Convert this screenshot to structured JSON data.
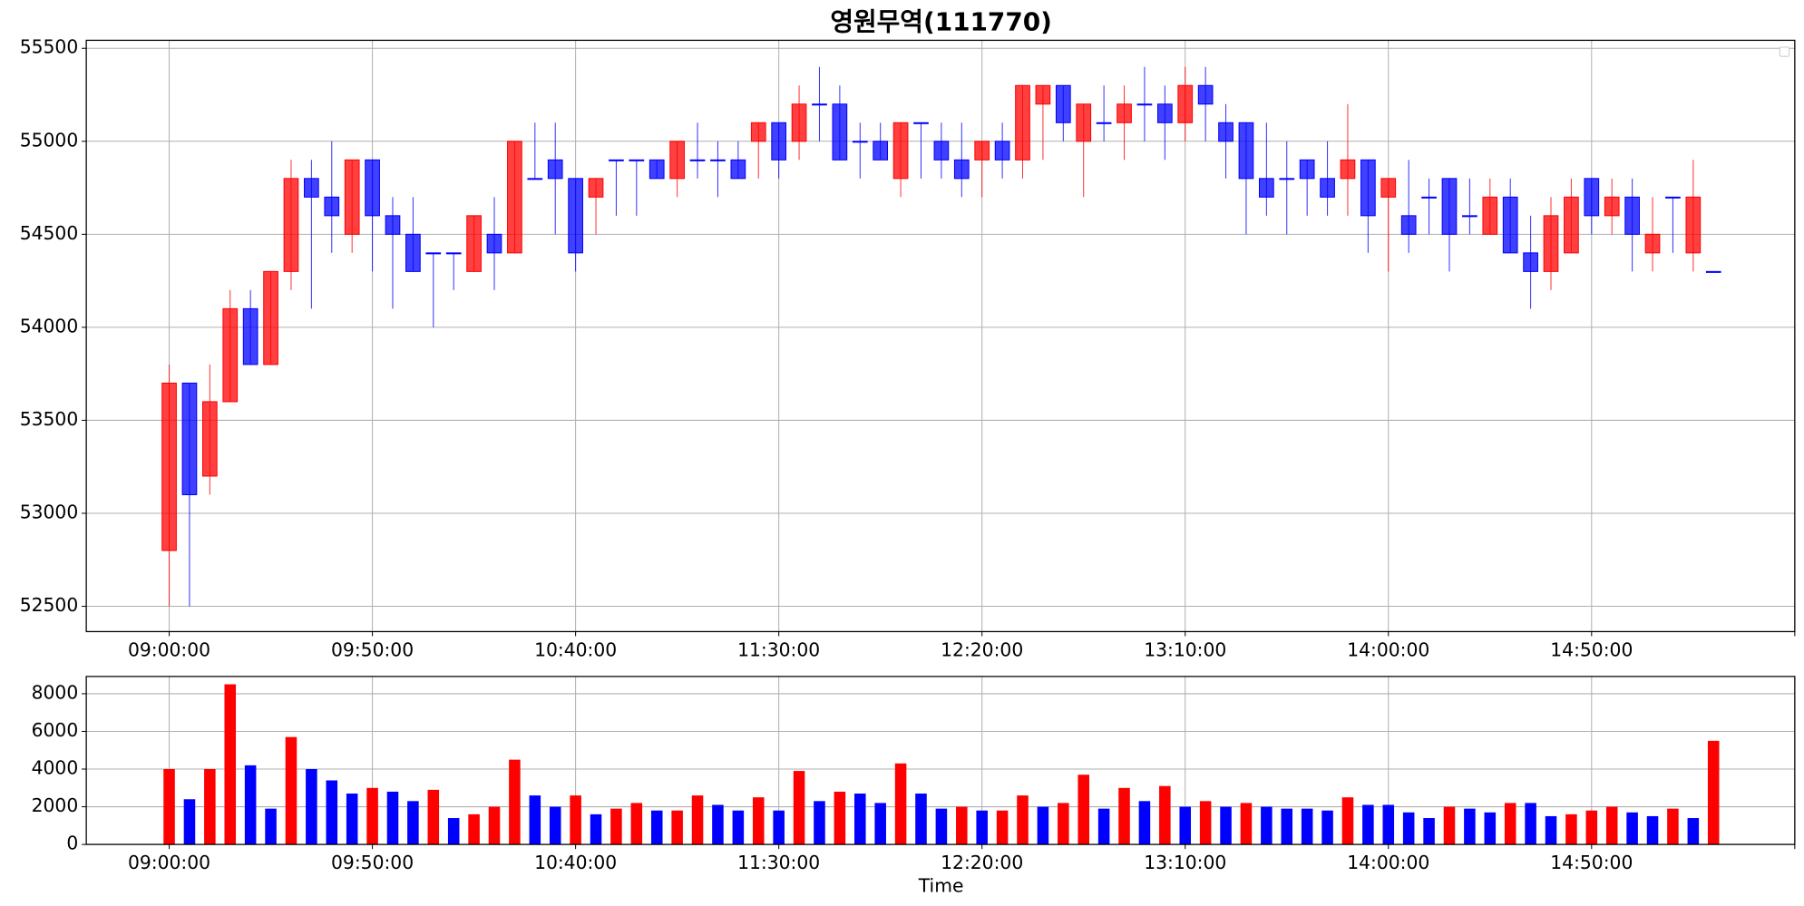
{
  "chart_data": [
    {
      "type": "candlestick",
      "title": "영원무역(111770)",
      "x": [
        "09:00:00",
        "09:05:00",
        "09:10:00",
        "09:15:00",
        "09:20:00",
        "09:25:00",
        "09:30:00",
        "09:35:00",
        "09:40:00",
        "09:45:00",
        "09:50:00",
        "09:55:00",
        "10:00:00",
        "10:05:00",
        "10:10:00",
        "10:15:00",
        "10:20:00",
        "10:25:00",
        "10:30:00",
        "10:35:00",
        "10:40:00",
        "10:45:00",
        "10:50:00",
        "10:55:00",
        "11:00:00",
        "11:05:00",
        "11:10:00",
        "11:15:00",
        "11:20:00",
        "11:25:00",
        "11:30:00",
        "11:35:00",
        "11:40:00",
        "11:45:00",
        "11:50:00",
        "11:55:00",
        "12:00:00",
        "12:05:00",
        "12:10:00",
        "12:15:00",
        "12:20:00",
        "12:25:00",
        "12:30:00",
        "12:35:00",
        "12:40:00",
        "12:45:00",
        "12:50:00",
        "12:55:00",
        "13:00:00",
        "13:05:00",
        "13:10:00",
        "13:15:00",
        "13:20:00",
        "13:25:00",
        "13:30:00",
        "13:35:00",
        "13:40:00",
        "13:45:00",
        "13:50:00",
        "13:55:00",
        "14:00:00",
        "14:05:00",
        "14:10:00",
        "14:15:00",
        "14:20:00",
        "14:25:00",
        "14:30:00",
        "14:35:00",
        "14:40:00",
        "14:45:00",
        "14:50:00",
        "14:55:00",
        "15:00:00",
        "15:05:00",
        "15:10:00",
        "15:15:00",
        "15:20:00"
      ],
      "open": [
        52800,
        53700,
        53200,
        53600,
        54100,
        53800,
        54300,
        54800,
        54700,
        54500,
        54900,
        54600,
        54500,
        54400,
        54400,
        54300,
        54500,
        54400,
        54800,
        54900,
        54800,
        54700,
        54900,
        54900,
        54900,
        54800,
        54900,
        54900,
        54900,
        55000,
        55100,
        55000,
        55200,
        55200,
        55000,
        55000,
        54800,
        55100,
        55000,
        54900,
        54900,
        55000,
        54900,
        55200,
        55300,
        55000,
        55100,
        55100,
        55200,
        55200,
        55100,
        55300,
        55100,
        55100,
        54800,
        54800,
        54900,
        54800,
        54800,
        54900,
        54700,
        54600,
        54700,
        54800,
        54600,
        54500,
        54700,
        54400,
        54300,
        54400,
        54800,
        54600,
        54700,
        54400,
        54700,
        54400,
        54300
      ],
      "high": [
        53800,
        53700,
        53800,
        54200,
        54200,
        54300,
        54900,
        54900,
        55000,
        54900,
        54900,
        54700,
        54700,
        54400,
        54400,
        54600,
        54700,
        55000,
        55100,
        55100,
        54800,
        54800,
        54900,
        54900,
        54900,
        55000,
        55100,
        55000,
        55000,
        55100,
        55100,
        55300,
        55400,
        55300,
        55100,
        55100,
        55100,
        55100,
        55100,
        55100,
        55000,
        55100,
        55300,
        55300,
        55300,
        55200,
        55300,
        55300,
        55400,
        55300,
        55400,
        55400,
        55200,
        55100,
        55100,
        55000,
        54900,
        55000,
        55200,
        54900,
        54800,
        54900,
        54800,
        54800,
        54800,
        54800,
        54800,
        54600,
        54700,
        54800,
        54800,
        54800,
        54800,
        54700,
        54700,
        54900,
        54300
      ],
      "low": [
        52500,
        52500,
        53100,
        53600,
        53800,
        53800,
        54200,
        54100,
        54400,
        54400,
        54300,
        54100,
        54300,
        54000,
        54200,
        54300,
        54200,
        54400,
        54800,
        54500,
        54300,
        54500,
        54600,
        54600,
        54800,
        54700,
        54800,
        54700,
        54800,
        54800,
        54800,
        54900,
        55000,
        54900,
        54800,
        54900,
        54700,
        54800,
        54800,
        54700,
        54700,
        54800,
        54800,
        54900,
        55000,
        54700,
        55000,
        54900,
        55000,
        54900,
        55000,
        55000,
        54800,
        54500,
        54600,
        54500,
        54600,
        54600,
        54600,
        54400,
        54300,
        54400,
        54500,
        54300,
        54500,
        54500,
        54400,
        54100,
        54200,
        54400,
        54500,
        54500,
        54300,
        54300,
        54400,
        54300,
        54300
      ],
      "close": [
        53700,
        53100,
        53600,
        54100,
        53800,
        54300,
        54800,
        54700,
        54600,
        54900,
        54600,
        54500,
        54300,
        54400,
        54400,
        54600,
        54400,
        55000,
        54800,
        54800,
        54400,
        54800,
        54900,
        54900,
        54800,
        55000,
        54900,
        54900,
        54800,
        55100,
        54900,
        55200,
        55200,
        54900,
        55000,
        54900,
        55100,
        55100,
        54900,
        54800,
        55000,
        54900,
        55300,
        55300,
        55100,
        55200,
        55100,
        55200,
        55200,
        55100,
        55300,
        55200,
        55000,
        54800,
        54700,
        54800,
        54800,
        54700,
        54900,
        54600,
        54800,
        54500,
        54700,
        54500,
        54600,
        54700,
        54400,
        54300,
        54600,
        54700,
        54600,
        54700,
        54500,
        54500,
        54700,
        54700,
        54300
      ],
      "up_color": "#ff0000",
      "down_color": "#0000ff",
      "ylim": [
        52364,
        55543
      ],
      "yticks": [
        52500,
        53000,
        53500,
        54000,
        54500,
        55000,
        55500
      ],
      "xticks": [
        "09:00:00",
        "09:50:00",
        "10:40:00",
        "11:30:00",
        "12:20:00",
        "13:10:00",
        "14:00:00",
        "14:50:00"
      ],
      "grid": true,
      "legend": "upper right"
    },
    {
      "type": "bar",
      "xlabel": "Time",
      "x": [
        "09:00:00",
        "09:05:00",
        "09:10:00",
        "09:15:00",
        "09:20:00",
        "09:25:00",
        "09:30:00",
        "09:35:00",
        "09:40:00",
        "09:45:00",
        "09:50:00",
        "09:55:00",
        "10:00:00",
        "10:05:00",
        "10:10:00",
        "10:15:00",
        "10:20:00",
        "10:25:00",
        "10:30:00",
        "10:35:00",
        "10:40:00",
        "10:45:00",
        "10:50:00",
        "10:55:00",
        "11:00:00",
        "11:05:00",
        "11:10:00",
        "11:15:00",
        "11:20:00",
        "11:25:00",
        "11:30:00",
        "11:35:00",
        "11:40:00",
        "11:45:00",
        "11:50:00",
        "11:55:00",
        "12:00:00",
        "12:05:00",
        "12:10:00",
        "12:15:00",
        "12:20:00",
        "12:25:00",
        "12:30:00",
        "12:35:00",
        "12:40:00",
        "12:45:00",
        "12:50:00",
        "12:55:00",
        "13:00:00",
        "13:05:00",
        "13:10:00",
        "13:15:00",
        "13:20:00",
        "13:25:00",
        "13:30:00",
        "13:35:00",
        "13:40:00",
        "13:45:00",
        "13:50:00",
        "13:55:00",
        "14:00:00",
        "14:05:00",
        "14:10:00",
        "14:15:00",
        "14:20:00",
        "14:25:00",
        "14:30:00",
        "14:35:00",
        "14:40:00",
        "14:45:00",
        "14:50:00",
        "14:55:00",
        "15:00:00",
        "15:05:00",
        "15:10:00",
        "15:15:00",
        "15:20:00"
      ],
      "values": [
        4000,
        2400,
        4000,
        8500,
        4200,
        1900,
        5700,
        4000,
        3400,
        2700,
        3000,
        2800,
        2300,
        2900,
        1400,
        1600,
        2000,
        4500,
        2600,
        2000,
        2600,
        1600,
        1900,
        2200,
        1800,
        1800,
        2600,
        2100,
        1800,
        2500,
        1800,
        3900,
        2300,
        2800,
        2700,
        2200,
        4300,
        2700,
        1900,
        2000,
        1800,
        1800,
        2600,
        2000,
        2200,
        3700,
        1900,
        3000,
        2300,
        3100,
        2000,
        2300,
        2000,
        2200,
        2000,
        1900,
        1900,
        1800,
        2500,
        2100,
        2100,
        1700,
        1400,
        2000,
        1900,
        1700,
        2200,
        2200,
        1500,
        1600,
        1800,
        2000,
        1700,
        1500,
        1900,
        1400,
        5500
      ],
      "colors": [
        "#ff0000",
        "#0000ff",
        "#ff0000",
        "#ff0000",
        "#0000ff",
        "#0000ff",
        "#ff0000",
        "#0000ff",
        "#0000ff",
        "#0000ff",
        "#ff0000",
        "#0000ff",
        "#0000ff",
        "#ff0000",
        "#0000ff",
        "#ff0000",
        "#ff0000",
        "#ff0000",
        "#0000ff",
        "#0000ff",
        "#ff0000",
        "#0000ff",
        "#ff0000",
        "#ff0000",
        "#0000ff",
        "#ff0000",
        "#ff0000",
        "#0000ff",
        "#0000ff",
        "#ff0000",
        "#0000ff",
        "#ff0000",
        "#0000ff",
        "#ff0000",
        "#0000ff",
        "#0000ff",
        "#ff0000",
        "#0000ff",
        "#0000ff",
        "#ff0000",
        "#0000ff",
        "#ff0000",
        "#ff0000",
        "#0000ff",
        "#ff0000",
        "#ff0000",
        "#0000ff",
        "#ff0000",
        "#0000ff",
        "#ff0000",
        "#0000ff",
        "#ff0000",
        "#0000ff",
        "#ff0000",
        "#0000ff",
        "#0000ff",
        "#0000ff",
        "#0000ff",
        "#ff0000",
        "#0000ff",
        "#0000ff",
        "#0000ff",
        "#0000ff",
        "#ff0000",
        "#0000ff",
        "#0000ff",
        "#ff0000",
        "#0000ff",
        "#0000ff",
        "#ff0000",
        "#ff0000",
        "#ff0000",
        "#0000ff",
        "#0000ff",
        "#ff0000",
        "#0000ff",
        "#ff0000"
      ],
      "ylim": [
        0,
        8916
      ],
      "yticks": [
        0,
        2000,
        4000,
        6000,
        8000
      ],
      "xticks": [
        "09:00:00",
        "09:50:00",
        "10:40:00",
        "11:30:00",
        "12:20:00",
        "13:10:00",
        "14:00:00",
        "14:50:00"
      ],
      "grid": true
    }
  ]
}
